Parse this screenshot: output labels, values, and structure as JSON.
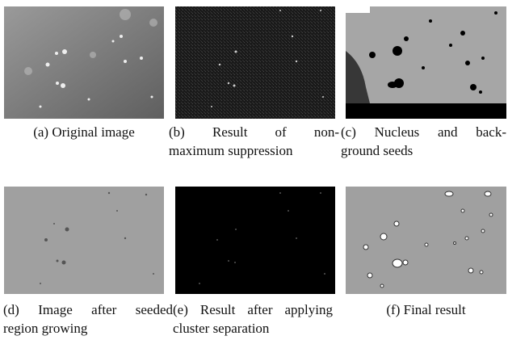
{
  "figure": {
    "subfigures": [
      {
        "label": "(a)",
        "lines": [
          "Original image"
        ]
      },
      {
        "label": "(b)",
        "lines": [
          "Result of non-",
          "maximum suppression"
        ]
      },
      {
        "label": "(c)",
        "lines": [
          "Nucleus and back-",
          "ground seeds"
        ]
      },
      {
        "label": "(d)",
        "lines": [
          "Image after seeded",
          "region growing"
        ]
      },
      {
        "label": "(e)",
        "lines": [
          "Result after applying",
          "cluster separation"
        ]
      },
      {
        "label": "(f)",
        "lines": [
          "Final result"
        ]
      }
    ]
  }
}
